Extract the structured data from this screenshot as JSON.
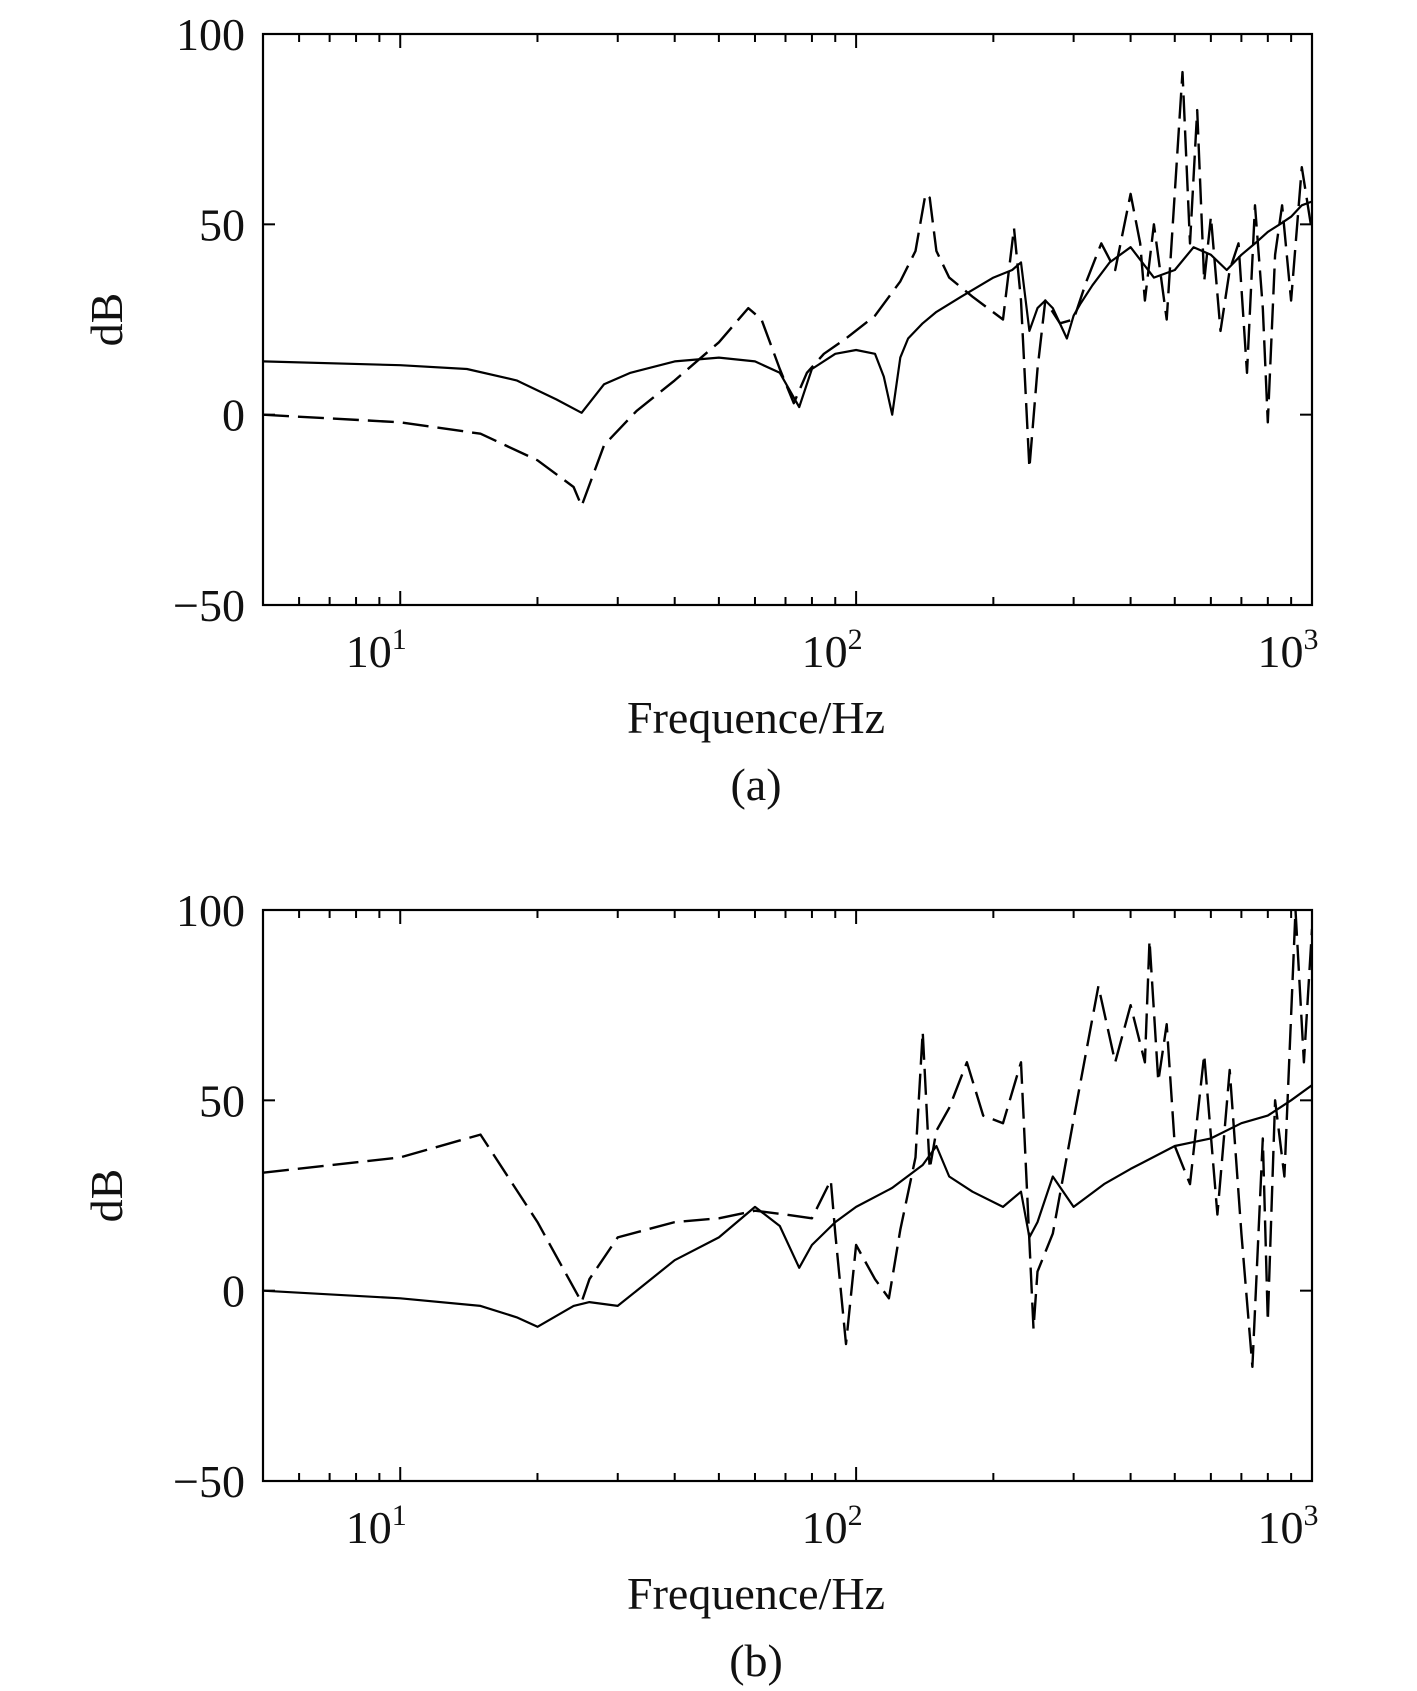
{
  "chart_data": [
    {
      "type": "line",
      "panel_label": "(a)",
      "xlabel": "Frequence/Hz",
      "ylabel": "dB",
      "x_scale": "log",
      "xlim": [
        5,
        1000
      ],
      "ylim": [
        -50,
        100
      ],
      "x_ticks": [
        {
          "value": 10,
          "base": "10",
          "exp": "1"
        },
        {
          "value": 100,
          "base": "10",
          "exp": "2"
        },
        {
          "value": 1000,
          "base": "10",
          "exp": "3"
        }
      ],
      "y_ticks": [
        {
          "value": 100,
          "label": "100"
        },
        {
          "value": 50,
          "label": "50"
        },
        {
          "value": 0,
          "label": "0"
        },
        {
          "value": -50,
          "label": "−50"
        }
      ],
      "grid": false,
      "legend": "none",
      "series": [
        {
          "style": "solid",
          "x": [
            5,
            10,
            14,
            18,
            22,
            25,
            28,
            32,
            40,
            50,
            60,
            68,
            75,
            80,
            90,
            100,
            110,
            115,
            120,
            125,
            130,
            140,
            150,
            170,
            200,
            220,
            230,
            240,
            250,
            260,
            270,
            290,
            300,
            310,
            330,
            360,
            400,
            450,
            500,
            550,
            600,
            650,
            700,
            750,
            800,
            850,
            900,
            950,
            1000
          ],
          "y": [
            14,
            13,
            12,
            9,
            4,
            0.5,
            8,
            11,
            14,
            15,
            14,
            11,
            2,
            12,
            16,
            17,
            16,
            10,
            0,
            15,
            20,
            24,
            27,
            31,
            36,
            38,
            40,
            22,
            28,
            30,
            28,
            20,
            26,
            29,
            34,
            40,
            44,
            36,
            38,
            44,
            42,
            38,
            42,
            45,
            48,
            50,
            52,
            55,
            56
          ]
        },
        {
          "style": "dashed",
          "x": [
            5,
            10,
            15,
            20,
            24,
            25,
            28,
            33,
            40,
            50,
            58,
            62,
            68,
            73,
            78,
            85,
            95,
            110,
            125,
            135,
            142,
            145,
            150,
            160,
            180,
            210,
            222,
            230,
            240,
            250,
            260,
            280,
            300,
            320,
            345,
            370,
            400,
            420,
            430,
            450,
            480,
            520,
            540,
            560,
            580,
            600,
            630,
            660,
            690,
            720,
            750,
            780,
            800,
            830,
            860,
            900,
            950,
            1000
          ],
          "y": [
            0,
            -2,
            -5,
            -12,
            -19,
            -24,
            -8,
            1,
            9,
            19,
            28,
            25,
            12,
            3,
            11,
            16,
            20,
            26,
            35,
            43,
            58,
            57,
            43,
            36,
            31,
            25,
            49,
            30,
            -14,
            12,
            30,
            24,
            25,
            35,
            45,
            38,
            58,
            45,
            30,
            50,
            25,
            90,
            45,
            80,
            35,
            52,
            22,
            38,
            45,
            11,
            55,
            28,
            -2,
            42,
            55,
            30,
            65,
            48
          ]
        }
      ]
    },
    {
      "type": "line",
      "panel_label": "(b)",
      "xlabel": "Frequence/Hz",
      "ylabel": "dB",
      "x_scale": "log",
      "xlim": [
        5,
        1000
      ],
      "ylim": [
        -50,
        100
      ],
      "x_ticks": [
        {
          "value": 10,
          "base": "10",
          "exp": "1"
        },
        {
          "value": 100,
          "base": "10",
          "exp": "2"
        },
        {
          "value": 1000,
          "base": "10",
          "exp": "3"
        }
      ],
      "y_ticks": [
        {
          "value": 100,
          "label": "100"
        },
        {
          "value": 50,
          "label": "50"
        },
        {
          "value": 0,
          "label": "0"
        },
        {
          "value": -50,
          "label": "−50"
        }
      ],
      "grid": false,
      "legend": "none",
      "series": [
        {
          "style": "solid",
          "x": [
            5,
            10,
            15,
            18,
            20,
            24,
            26,
            30,
            40,
            50,
            60,
            68,
            75,
            80,
            90,
            100,
            120,
            140,
            150,
            160,
            180,
            210,
            230,
            240,
            250,
            270,
            300,
            350,
            400,
            500,
            600,
            700,
            800,
            900,
            1000
          ],
          "y": [
            0,
            -2,
            -4,
            -7,
            -9.5,
            -4,
            -3,
            -4,
            8,
            14,
            22,
            17,
            6,
            12,
            18,
            22,
            27,
            33,
            38,
            30,
            26,
            22,
            26,
            14,
            18,
            30,
            22,
            28,
            32,
            38,
            40,
            44,
            46,
            50,
            54
          ]
        },
        {
          "style": "dashed",
          "x": [
            5,
            10,
            15,
            20,
            25,
            26,
            30,
            40,
            50,
            60,
            70,
            80,
            88,
            90,
            95,
            100,
            110,
            118,
            125,
            135,
            140,
            145,
            150,
            160,
            175,
            190,
            210,
            230,
            245,
            250,
            270,
            300,
            340,
            370,
            400,
            430,
            440,
            460,
            480,
            500,
            540,
            580,
            620,
            660,
            700,
            740,
            780,
            800,
            830,
            870,
            920,
            960,
            1000
          ],
          "y": [
            31,
            35,
            41,
            18,
            -3,
            3,
            14,
            18,
            19,
            21,
            20,
            19,
            29,
            15,
            -14,
            12,
            3,
            -2,
            16,
            35,
            68,
            32,
            42,
            48,
            60,
            46,
            44,
            60,
            -10,
            5,
            15,
            45,
            80,
            60,
            75,
            60,
            92,
            55,
            70,
            38,
            28,
            62,
            20,
            58,
            15,
            -20,
            40,
            -8,
            50,
            30,
            100,
            60,
            95
          ]
        }
      ]
    }
  ]
}
